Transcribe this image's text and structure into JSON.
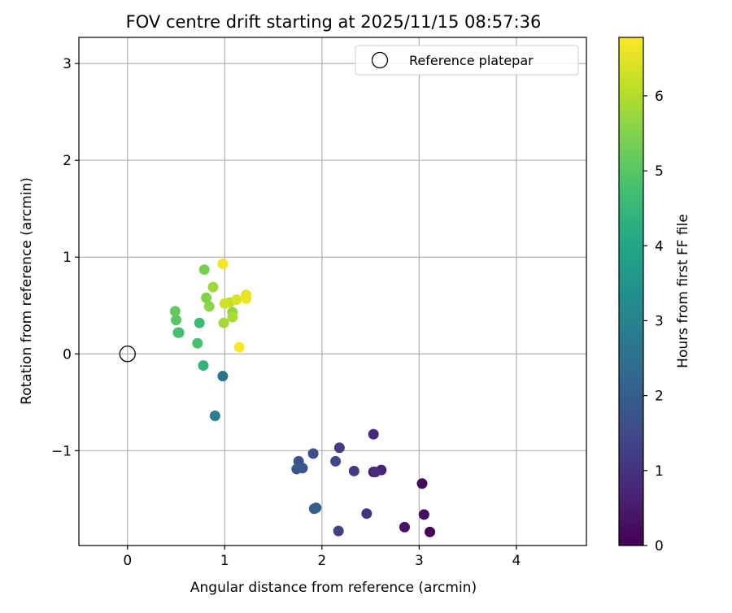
{
  "chart_data": {
    "type": "scatter",
    "title": "FOV centre drift starting at 2025/11/15 08:57:36",
    "xlabel": "Angular distance from reference (arcmin)",
    "ylabel": "Rotation from reference (arcmin)",
    "xlim": [
      -0.5,
      4.72
    ],
    "ylim": [
      -1.98,
      3.27
    ],
    "xticks": [
      0,
      1,
      2,
      3,
      4
    ],
    "xtick_labels": [
      "0",
      "1",
      "2",
      "3",
      "4"
    ],
    "yticks": [
      -1,
      0,
      1,
      2,
      3
    ],
    "ytick_labels": [
      "−1",
      "0",
      "1",
      "2",
      "3"
    ],
    "grid": true,
    "legend": {
      "location": "top-right",
      "entries": [
        {
          "label": "Reference platepar",
          "marker": "hollow-circle"
        }
      ]
    },
    "reference": {
      "x": 0,
      "y": 0,
      "label": "Reference platepar"
    },
    "colorbar": {
      "label": "Hours from first FF file",
      "colormap": "viridis",
      "range": [
        0,
        6.78
      ],
      "ticks": [
        0,
        1,
        2,
        3,
        4,
        5,
        6
      ],
      "tick_labels": [
        "0",
        "1",
        "2",
        "3",
        "4",
        "5",
        "6"
      ]
    },
    "points": [
      {
        "x": 3.11,
        "y": -1.84,
        "hours": 0.05
      },
      {
        "x": 3.03,
        "y": -1.34,
        "hours": 0.15
      },
      {
        "x": 3.05,
        "y": -1.66,
        "hours": 0.25
      },
      {
        "x": 2.85,
        "y": -1.79,
        "hours": 0.35
      },
      {
        "x": 2.53,
        "y": -1.22,
        "hours": 0.5
      },
      {
        "x": 2.61,
        "y": -1.2,
        "hours": 0.65
      },
      {
        "x": 2.53,
        "y": -0.83,
        "hours": 0.8
      },
      {
        "x": 2.55,
        "y": -1.22,
        "hours": 0.9
      },
      {
        "x": 2.46,
        "y": -1.65,
        "hours": 1.0
      },
      {
        "x": 2.33,
        "y": -1.21,
        "hours": 1.1
      },
      {
        "x": 2.18,
        "y": -0.97,
        "hours": 1.2
      },
      {
        "x": 2.17,
        "y": -1.83,
        "hours": 1.3
      },
      {
        "x": 2.14,
        "y": -1.11,
        "hours": 1.45
      },
      {
        "x": 1.91,
        "y": -1.03,
        "hours": 1.6
      },
      {
        "x": 1.76,
        "y": -1.11,
        "hours": 1.7
      },
      {
        "x": 1.8,
        "y": -1.18,
        "hours": 1.8
      },
      {
        "x": 1.74,
        "y": -1.19,
        "hours": 1.85
      },
      {
        "x": 1.94,
        "y": -1.59,
        "hours": 1.9
      },
      {
        "x": 1.92,
        "y": -1.6,
        "hours": 2.0
      },
      {
        "x": 0.98,
        "y": -0.23,
        "hours": 2.6
      },
      {
        "x": 0.9,
        "y": -0.64,
        "hours": 2.9
      },
      {
        "x": 0.78,
        "y": -0.12,
        "hours": 4.4
      },
      {
        "x": 0.74,
        "y": 0.32,
        "hours": 4.6
      },
      {
        "x": 0.53,
        "y": 0.22,
        "hours": 4.7
      },
      {
        "x": 0.52,
        "y": 0.22,
        "hours": 4.75
      },
      {
        "x": 0.72,
        "y": 0.11,
        "hours": 4.8
      },
      {
        "x": 0.5,
        "y": 0.35,
        "hours": 5.0
      },
      {
        "x": 0.49,
        "y": 0.44,
        "hours": 5.15
      },
      {
        "x": 0.79,
        "y": 0.87,
        "hours": 5.4
      },
      {
        "x": 0.81,
        "y": 0.58,
        "hours": 5.5
      },
      {
        "x": 0.84,
        "y": 0.49,
        "hours": 5.6
      },
      {
        "x": 1.08,
        "y": 0.43,
        "hours": 5.65
      },
      {
        "x": 0.88,
        "y": 0.69,
        "hours": 5.8
      },
      {
        "x": 0.99,
        "y": 0.32,
        "hours": 5.85
      },
      {
        "x": 1.08,
        "y": 0.38,
        "hours": 5.9
      },
      {
        "x": 1.05,
        "y": 0.53,
        "hours": 6.1
      },
      {
        "x": 1.0,
        "y": 0.52,
        "hours": 6.3
      },
      {
        "x": 1.12,
        "y": 0.56,
        "hours": 6.4
      },
      {
        "x": 1.22,
        "y": 0.61,
        "hours": 6.5
      },
      {
        "x": 1.22,
        "y": 0.57,
        "hours": 6.6
      },
      {
        "x": 0.98,
        "y": 0.93,
        "hours": 6.7
      },
      {
        "x": 1.15,
        "y": 0.07,
        "hours": 6.75
      }
    ]
  }
}
